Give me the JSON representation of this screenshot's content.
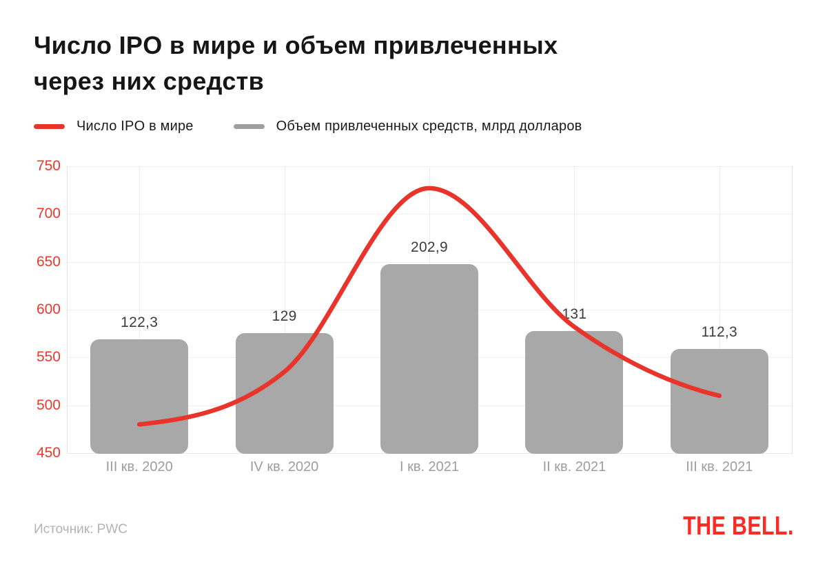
{
  "header": {
    "title": "Число IPO в мире и объем привлеченных через них средств",
    "title_lines": [
      "Число IPO в мире и объем привлеченных",
      "через них средств"
    ]
  },
  "legend": {
    "items": [
      {
        "label": "Число IPO в мире",
        "swatch_color": "#e8342b",
        "icon": "line-swatch"
      },
      {
        "label": "Объем привлеченных средств, млрд долларов",
        "swatch_color": "#9f9f9f",
        "icon": "bar-swatch"
      }
    ]
  },
  "chart_data": {
    "type": "combo-bar-line",
    "categories": [
      "III кв. 2020",
      "IV кв. 2020",
      "I кв. 2021",
      "II кв. 2021",
      "III кв. 2021"
    ],
    "series": [
      {
        "name": "Число IPO в мире",
        "type": "line",
        "color": "#e8342b",
        "values": [
          480,
          535,
          727,
          582,
          510
        ]
      },
      {
        "name": "Объем привлеченных средств, млрд долларов",
        "type": "bar",
        "color": "#a8a8a8",
        "values": [
          122.3,
          129,
          202.9,
          131,
          112.3
        ],
        "value_labels": [
          "122,3",
          "129",
          "202,9",
          "131",
          "112,3"
        ]
      }
    ],
    "left_axis": {
      "min": 450,
      "max": 750,
      "step": 50,
      "tick_labels": [
        "750",
        "700",
        "650",
        "600",
        "550",
        "500",
        "450"
      ],
      "tick_color": "#ee382c"
    },
    "bar_axis_visible": false,
    "grid": {
      "horizontal": true,
      "vertical": true
    },
    "legend_position": "top"
  },
  "footer": {
    "source_label": "Источник: PWC",
    "logo_text": "THE BELL."
  },
  "colors": {
    "accent_red": "#e8342b",
    "tick_red": "#ee382c",
    "bar_gray": "#a8a8a8",
    "grid_gray": "#ececec",
    "x_label_gray": "#9d9d9d",
    "bar_label_dark": "#3c3c3c",
    "title_black": "#161616",
    "source_gray": "#b3b3b3",
    "logo_red": "#fa2a25"
  }
}
